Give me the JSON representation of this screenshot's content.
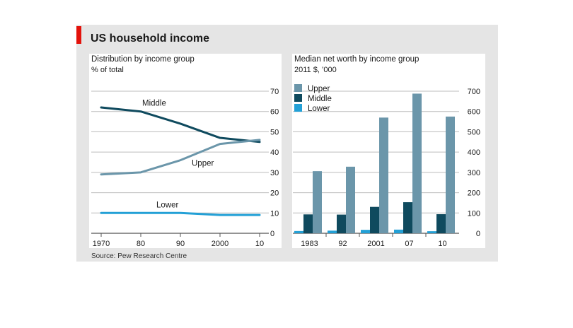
{
  "title": "US household income",
  "source": "Source: Pew Research Centre",
  "colors": {
    "accent": "#e3120b",
    "dark": "#0f4a5e",
    "mid": "#6b96aa",
    "light": "#23a0d6",
    "grid": "#bcbcbc",
    "background": "#e5e5e5"
  },
  "chart_data": [
    {
      "type": "line",
      "title": "Distribution by income group",
      "subtitle": "% of total",
      "x": [
        1970,
        1980,
        1990,
        2000,
        2010
      ],
      "x_tick_labels": [
        "1970",
        "80",
        "90",
        "2000",
        "10"
      ],
      "ylim": [
        0,
        70
      ],
      "y_ticks": [
        0,
        10,
        20,
        30,
        40,
        50,
        60,
        70
      ],
      "grid": true,
      "series": [
        {
          "name": "Middle",
          "color": "#0f4a5e",
          "values": [
            62,
            60,
            54,
            47,
            45
          ]
        },
        {
          "name": "Upper",
          "color": "#6b96aa",
          "values": [
            29,
            30,
            36,
            44,
            46
          ]
        },
        {
          "name": "Lower",
          "color": "#23a0d6",
          "values": [
            10,
            10,
            10,
            9,
            9
          ]
        }
      ]
    },
    {
      "type": "bar",
      "title": "Median net worth by income group",
      "subtitle": "2011 $, ’000",
      "categories": [
        "1983",
        "92",
        "2001",
        "07",
        "10"
      ],
      "ylim": [
        0,
        700
      ],
      "y_ticks": [
        0,
        100,
        200,
        300,
        400,
        500,
        600,
        700
      ],
      "grid": true,
      "legend_position": "top-left",
      "series": [
        {
          "name": "Lower",
          "color": "#23a0d6",
          "values": [
            11,
            13,
            17,
            18,
            10
          ]
        },
        {
          "name": "Middle",
          "color": "#0f4a5e",
          "values": [
            93,
            92,
            130,
            153,
            94
          ]
        },
        {
          "name": "Upper",
          "color": "#6b96aa",
          "values": [
            306,
            328,
            570,
            688,
            575
          ]
        }
      ],
      "legend_order": [
        "Upper",
        "Middle",
        "Lower"
      ]
    }
  ]
}
